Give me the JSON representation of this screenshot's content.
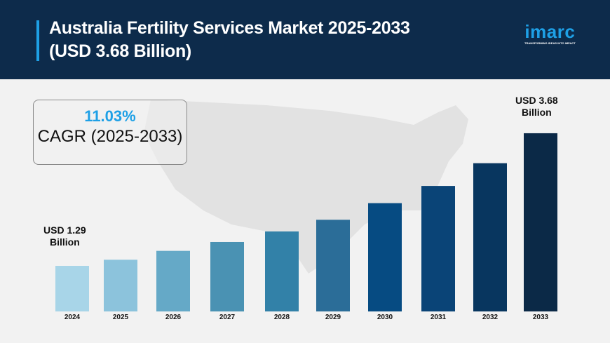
{
  "header": {
    "title_line1": "Australia Fertility Services Market 2025-2033",
    "title_line2": "(USD 3.68 Billion)"
  },
  "logo": {
    "name": "imarc",
    "tagline": "TRANSFORMING IDEAS INTO IMPACT"
  },
  "cagr": {
    "value": "11.03%",
    "label": "CAGR (2025-2033)"
  },
  "annotations": {
    "start_line1": "USD 1.29",
    "start_line2": "Billion",
    "end_line1": "USD 3.68",
    "end_line2": "Billion"
  },
  "colors": {
    "header": "#0d2b4b",
    "accent": "#1ea0e6",
    "bars": [
      "#a8d5e8",
      "#8cc3dc",
      "#65a9c7",
      "#4a92b3",
      "#3281a8",
      "#2b6d98",
      "#064b82",
      "#0a4477",
      "#08365f",
      "#0b2947"
    ]
  },
  "chart_data": {
    "type": "bar",
    "categories": [
      "2024",
      "2025",
      "2026",
      "2027",
      "2028",
      "2029",
      "2030",
      "2031",
      "2032",
      "2033"
    ],
    "values": [
      1.29,
      1.4,
      1.56,
      1.72,
      1.91,
      2.12,
      2.42,
      2.73,
      3.14,
      3.68
    ],
    "unit": "USD Billion",
    "title": "Australia Fertility Services Market 2025-2033",
    "xlabel": "",
    "ylabel": "",
    "grid": false
  }
}
